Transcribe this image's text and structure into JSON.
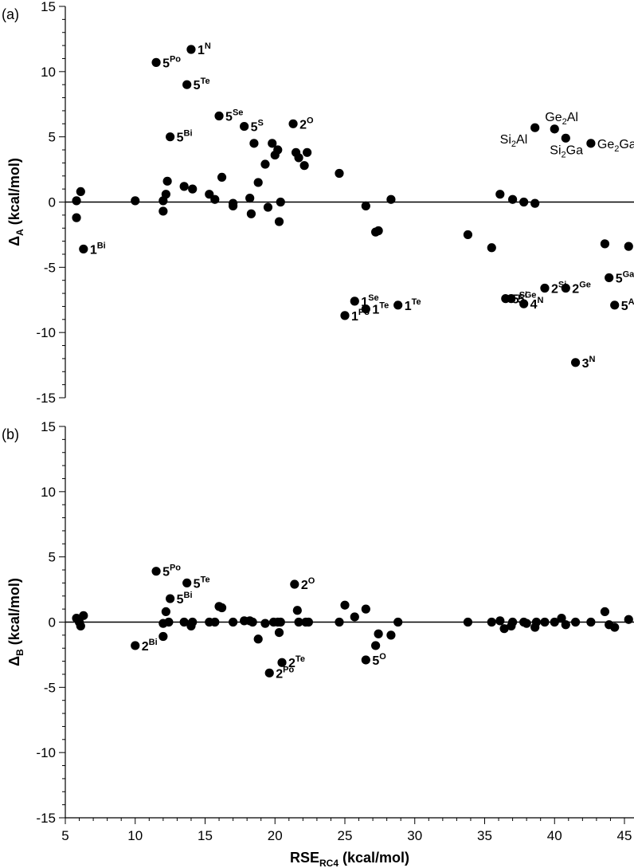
{
  "chart_data": [
    {
      "type": "scatter",
      "panel_label": "(a)",
      "xlabel_main": "RSE",
      "xlabel_sub": "RC4",
      "xlabel_unit": " (kcal/mol)",
      "ylabel_main": "Δ",
      "ylabel_sub": "A",
      "ylabel_unit": " (kcal/mol)",
      "xlim": [
        5,
        46
      ],
      "ylim": [
        -15,
        15
      ],
      "yticks": [
        -15,
        -10,
        -5,
        0,
        5,
        10,
        15
      ],
      "ytick_labels": [
        "-15",
        "-10",
        "-5",
        "0",
        "5",
        "10",
        "15"
      ],
      "points": [
        [
          5.8,
          0.1
        ],
        [
          6.1,
          0.8
        ],
        [
          5.8,
          -1.2
        ],
        [
          6.3,
          -3.6
        ],
        [
          10.0,
          0.1
        ],
        [
          11.5,
          10.7
        ],
        [
          12.0,
          0.1
        ],
        [
          12.0,
          -0.7
        ],
        [
          12.2,
          0.6
        ],
        [
          12.3,
          1.6
        ],
        [
          12.5,
          5.0
        ],
        [
          13.5,
          1.2
        ],
        [
          13.7,
          9.0
        ],
        [
          14.0,
          11.7
        ],
        [
          14.1,
          1.0
        ],
        [
          15.3,
          0.6
        ],
        [
          15.7,
          0.2
        ],
        [
          16.0,
          6.6
        ],
        [
          16.2,
          1.9
        ],
        [
          17.0,
          -0.1
        ],
        [
          17.0,
          -0.3
        ],
        [
          17.8,
          5.8
        ],
        [
          18.2,
          0.3
        ],
        [
          18.3,
          -0.9
        ],
        [
          18.5,
          4.5
        ],
        [
          18.8,
          1.5
        ],
        [
          19.3,
          2.9
        ],
        [
          19.5,
          -0.4
        ],
        [
          19.8,
          4.5
        ],
        [
          20.0,
          3.6
        ],
        [
          20.2,
          4.0
        ],
        [
          20.3,
          -1.5
        ],
        [
          20.4,
          0.0
        ],
        [
          21.3,
          6.0
        ],
        [
          21.5,
          3.8
        ],
        [
          21.7,
          3.4
        ],
        [
          22.1,
          2.8
        ],
        [
          22.3,
          3.8
        ],
        [
          24.6,
          2.2
        ],
        [
          25.0,
          -8.7
        ],
        [
          25.7,
          -7.6
        ],
        [
          26.5,
          -0.3
        ],
        [
          26.5,
          -8.2
        ],
        [
          27.2,
          -2.3
        ],
        [
          27.4,
          -2.2
        ],
        [
          28.3,
          0.2
        ],
        [
          28.8,
          -7.9
        ],
        [
          33.8,
          -2.5
        ],
        [
          35.5,
          -3.5
        ],
        [
          36.1,
          0.6
        ],
        [
          36.5,
          -7.4
        ],
        [
          36.9,
          -7.4
        ],
        [
          37.0,
          0.2
        ],
        [
          37.8,
          -7.8
        ],
        [
          37.8,
          0.0
        ],
        [
          38.6,
          -0.1
        ],
        [
          38.6,
          5.7
        ],
        [
          39.3,
          -6.6
        ],
        [
          40.0,
          5.6
        ],
        [
          40.8,
          -6.6
        ],
        [
          40.8,
          4.9
        ],
        [
          41.5,
          -12.3
        ],
        [
          42.6,
          4.5
        ],
        [
          43.6,
          -3.2
        ],
        [
          43.9,
          -5.8
        ],
        [
          44.3,
          -7.9
        ],
        [
          45.3,
          -3.4
        ]
      ],
      "annotations": [
        {
          "base": "1",
          "sup": "N",
          "x": 14.0,
          "y": 11.7
        },
        {
          "base": "5",
          "sup": "Po",
          "x": 11.5,
          "y": 10.7
        },
        {
          "base": "5",
          "sup": "Te",
          "x": 13.7,
          "y": 9.0
        },
        {
          "base": "5",
          "sup": "Se",
          "x": 16.0,
          "y": 6.6
        },
        {
          "base": "5",
          "sup": "S",
          "x": 17.8,
          "y": 5.8
        },
        {
          "base": "2",
          "sup": "O",
          "x": 21.3,
          "y": 6.0
        },
        {
          "base": "5",
          "sup": "Bi",
          "x": 12.5,
          "y": 5.0
        },
        {
          "base": "1",
          "sup": "Bi",
          "x": 6.3,
          "y": -3.6
        },
        {
          "base": "1",
          "sup": "Se",
          "x": 25.7,
          "y": -7.6
        },
        {
          "base": "1",
          "sup": "Te",
          "x": 26.5,
          "y": -8.2
        },
        {
          "base": "1",
          "sup": "Te",
          "x": 28.8,
          "y": -7.9
        },
        {
          "base": "1",
          "sup": "Po",
          "x": 25.0,
          "y": -8.7
        },
        {
          "base": "5",
          "sup": "Si",
          "x": 36.5,
          "y": -7.4
        },
        {
          "base": "5",
          "sup": "Ge",
          "x": 36.9,
          "y": -7.4
        },
        {
          "base": "2",
          "sup": "Si",
          "x": 39.3,
          "y": -6.6
        },
        {
          "base": "2",
          "sup": "Ge",
          "x": 40.8,
          "y": -6.6
        },
        {
          "base": "4",
          "sup": "N",
          "x": 37.8,
          "y": -7.8
        },
        {
          "base": "3",
          "sup": "N",
          "x": 41.5,
          "y": -12.3
        },
        {
          "base": "5",
          "sup": "Ga",
          "x": 43.9,
          "y": -5.8
        },
        {
          "base": "5",
          "sup": "Al",
          "x": 44.3,
          "y": -7.9
        },
        {
          "text_a": "Ge",
          "sub": "2",
          "text_b": "Al",
          "x": 40.0,
          "y": 5.6
        },
        {
          "text_a": "Si",
          "sub": "2",
          "text_b": "Al",
          "x": 38.6,
          "y": 5.7
        },
        {
          "text_a": "Si",
          "sub": "2",
          "text_b": "Ga",
          "x": 40.8,
          "y": 4.9
        },
        {
          "text_a": "Ge",
          "sub": "2",
          "text_b": "Ga",
          "x": 42.6,
          "y": 4.5
        }
      ]
    },
    {
      "type": "scatter",
      "panel_label": "(b)",
      "xlabel_main": "RSE",
      "xlabel_sub": "RC4",
      "xlabel_unit": " (kcal/mol)",
      "ylabel_main": "Δ",
      "ylabel_sub": "B",
      "ylabel_unit": " (kcal/mol)",
      "xlim": [
        5,
        46
      ],
      "ylim": [
        -15,
        15
      ],
      "xticks": [
        5,
        10,
        15,
        20,
        25,
        30,
        35,
        40,
        45
      ],
      "xtick_labels": [
        "5",
        "10",
        "15",
        "20",
        "25",
        "30",
        "35",
        "40",
        "45"
      ],
      "yticks": [
        -15,
        -10,
        -5,
        0,
        5,
        10,
        15
      ],
      "ytick_labels": [
        "-15",
        "-10",
        "-5",
        "0",
        "5",
        "10",
        "15"
      ],
      "points": [
        [
          5.8,
          0.3
        ],
        [
          6.0,
          0.0
        ],
        [
          6.1,
          -0.3
        ],
        [
          6.3,
          0.5
        ],
        [
          10.0,
          -1.8
        ],
        [
          11.5,
          3.9
        ],
        [
          12.0,
          -0.1
        ],
        [
          12.0,
          -1.1
        ],
        [
          12.2,
          0.8
        ],
        [
          12.4,
          0.0
        ],
        [
          12.5,
          1.8
        ],
        [
          13.5,
          0.0
        ],
        [
          13.7,
          3.0
        ],
        [
          14.0,
          -0.3
        ],
        [
          14.1,
          0.0
        ],
        [
          15.3,
          0.0
        ],
        [
          15.7,
          0.0
        ],
        [
          16.0,
          1.2
        ],
        [
          16.2,
          1.1
        ],
        [
          17.0,
          0.0
        ],
        [
          17.8,
          0.1
        ],
        [
          18.2,
          0.1
        ],
        [
          18.4,
          0.0
        ],
        [
          18.8,
          -1.3
        ],
        [
          19.3,
          -0.1
        ],
        [
          19.6,
          -3.9
        ],
        [
          19.9,
          0.0
        ],
        [
          20.2,
          0.0
        ],
        [
          20.3,
          -0.8
        ],
        [
          20.4,
          0.0
        ],
        [
          20.5,
          -3.1
        ],
        [
          21.4,
          2.9
        ],
        [
          21.6,
          0.9
        ],
        [
          21.7,
          0.0
        ],
        [
          22.2,
          0.0
        ],
        [
          22.4,
          0.0
        ],
        [
          24.6,
          0.0
        ],
        [
          25.0,
          1.3
        ],
        [
          25.7,
          0.4
        ],
        [
          26.5,
          1.0
        ],
        [
          26.5,
          -2.9
        ],
        [
          27.2,
          -1.8
        ],
        [
          27.4,
          -0.9
        ],
        [
          28.3,
          -1.0
        ],
        [
          28.8,
          0.0
        ],
        [
          33.8,
          0.0
        ],
        [
          35.5,
          0.0
        ],
        [
          36.1,
          0.1
        ],
        [
          36.4,
          -0.5
        ],
        [
          36.9,
          -0.3
        ],
        [
          37.0,
          0.0
        ],
        [
          37.8,
          0.0
        ],
        [
          38.0,
          -0.1
        ],
        [
          38.6,
          -0.4
        ],
        [
          38.7,
          0.0
        ],
        [
          39.3,
          0.0
        ],
        [
          40.0,
          0.0
        ],
        [
          40.5,
          0.3
        ],
        [
          40.8,
          -0.2
        ],
        [
          41.5,
          0.0
        ],
        [
          42.6,
          0.0
        ],
        [
          43.6,
          0.8
        ],
        [
          43.9,
          -0.2
        ],
        [
          44.3,
          -0.4
        ],
        [
          45.3,
          0.2
        ]
      ],
      "annotations": [
        {
          "base": "5",
          "sup": "Po",
          "x": 11.5,
          "y": 3.9
        },
        {
          "base": "5",
          "sup": "Te",
          "x": 13.7,
          "y": 3.0
        },
        {
          "base": "5",
          "sup": "Bi",
          "x": 12.5,
          "y": 1.8
        },
        {
          "base": "2",
          "sup": "O",
          "x": 21.4,
          "y": 2.9
        },
        {
          "base": "2",
          "sup": "Bi",
          "x": 10.0,
          "y": -1.8
        },
        {
          "base": "2",
          "sup": "Te",
          "x": 20.5,
          "y": -3.1
        },
        {
          "base": "2",
          "sup": "Po",
          "x": 19.6,
          "y": -3.9
        },
        {
          "base": "5",
          "sup": "O",
          "x": 26.5,
          "y": -2.9
        }
      ]
    }
  ]
}
